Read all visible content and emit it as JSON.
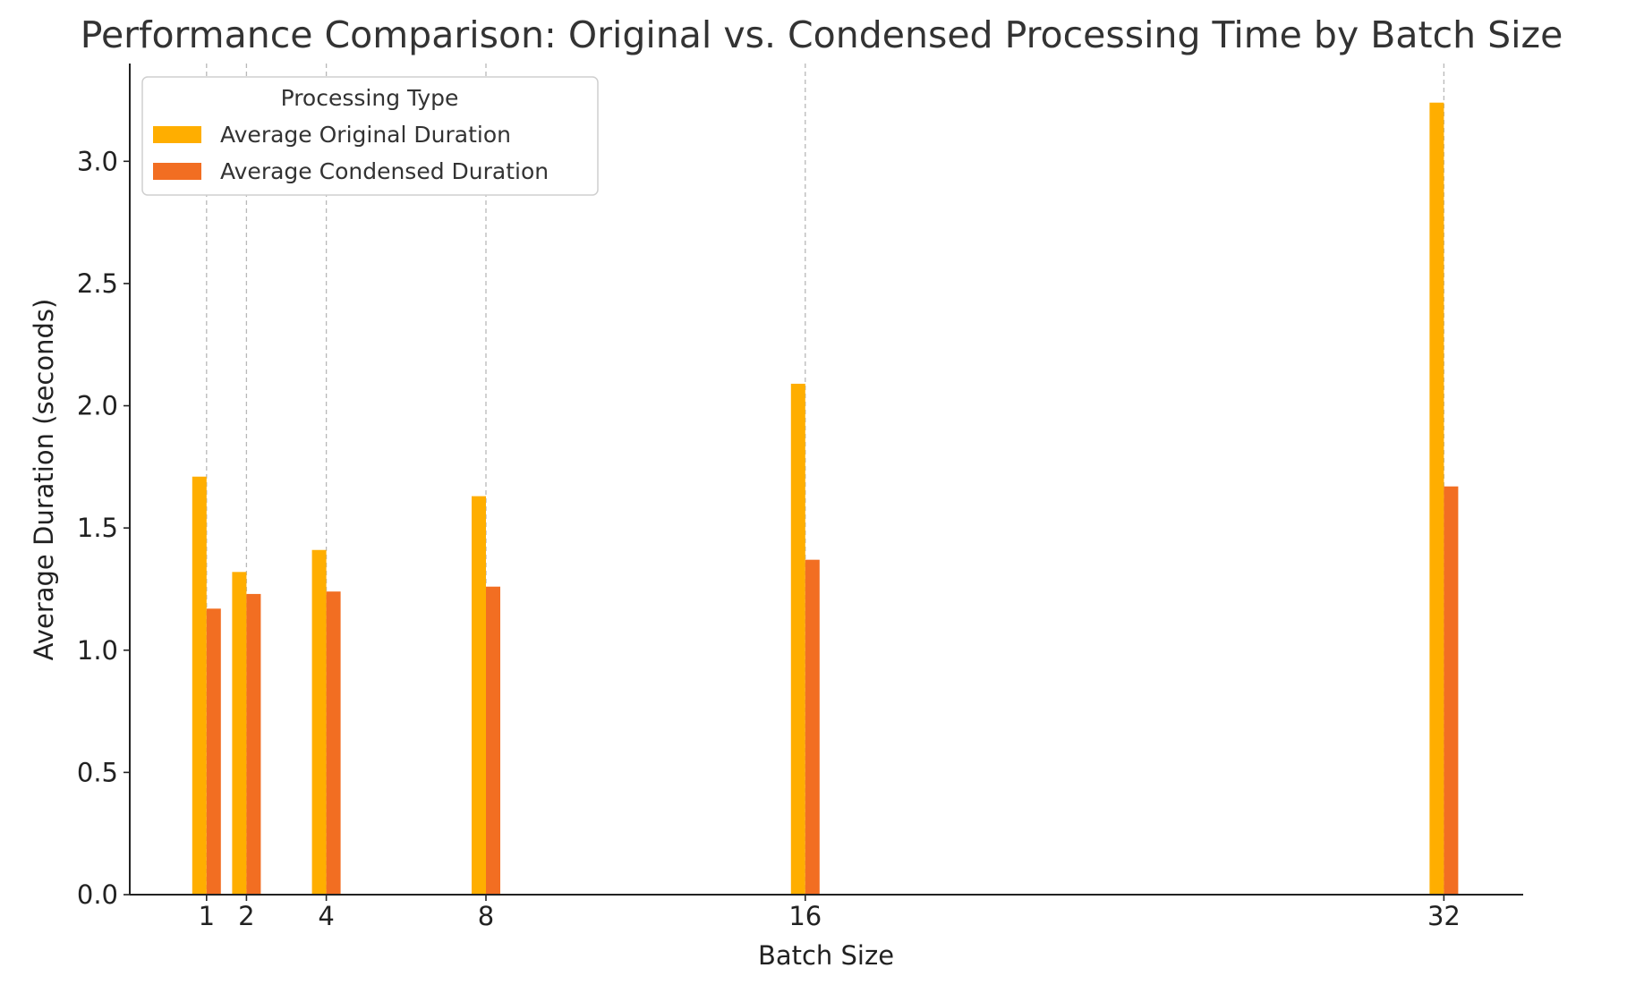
{
  "chart_data": {
    "type": "bar",
    "title": "Performance Comparison: Original vs. Condensed Processing Time by Batch Size",
    "xlabel": "Batch Size",
    "ylabel": "Average Duration (seconds)",
    "x_scale": "linear",
    "x": [
      1,
      2,
      4,
      8,
      16,
      32
    ],
    "xticks": [
      "1",
      "2",
      "4",
      "8",
      "16",
      "32"
    ],
    "ylim": [
      0,
      3.4
    ],
    "yticks": [
      "0.0",
      "0.5",
      "1.0",
      "1.5",
      "2.0",
      "2.5",
      "3.0"
    ],
    "grid": "vertical dashed lines at x ticks",
    "legend": {
      "title": "Processing Type",
      "placement": "top-left"
    },
    "series": [
      {
        "name": "Average Original Duration",
        "color": "#FFAE00",
        "values": [
          1.71,
          1.32,
          1.41,
          1.63,
          2.09,
          3.24
        ]
      },
      {
        "name": "Average Condensed Duration",
        "color": "#F26E22",
        "values": [
          1.17,
          1.23,
          1.24,
          1.26,
          1.37,
          1.67
        ]
      }
    ]
  }
}
